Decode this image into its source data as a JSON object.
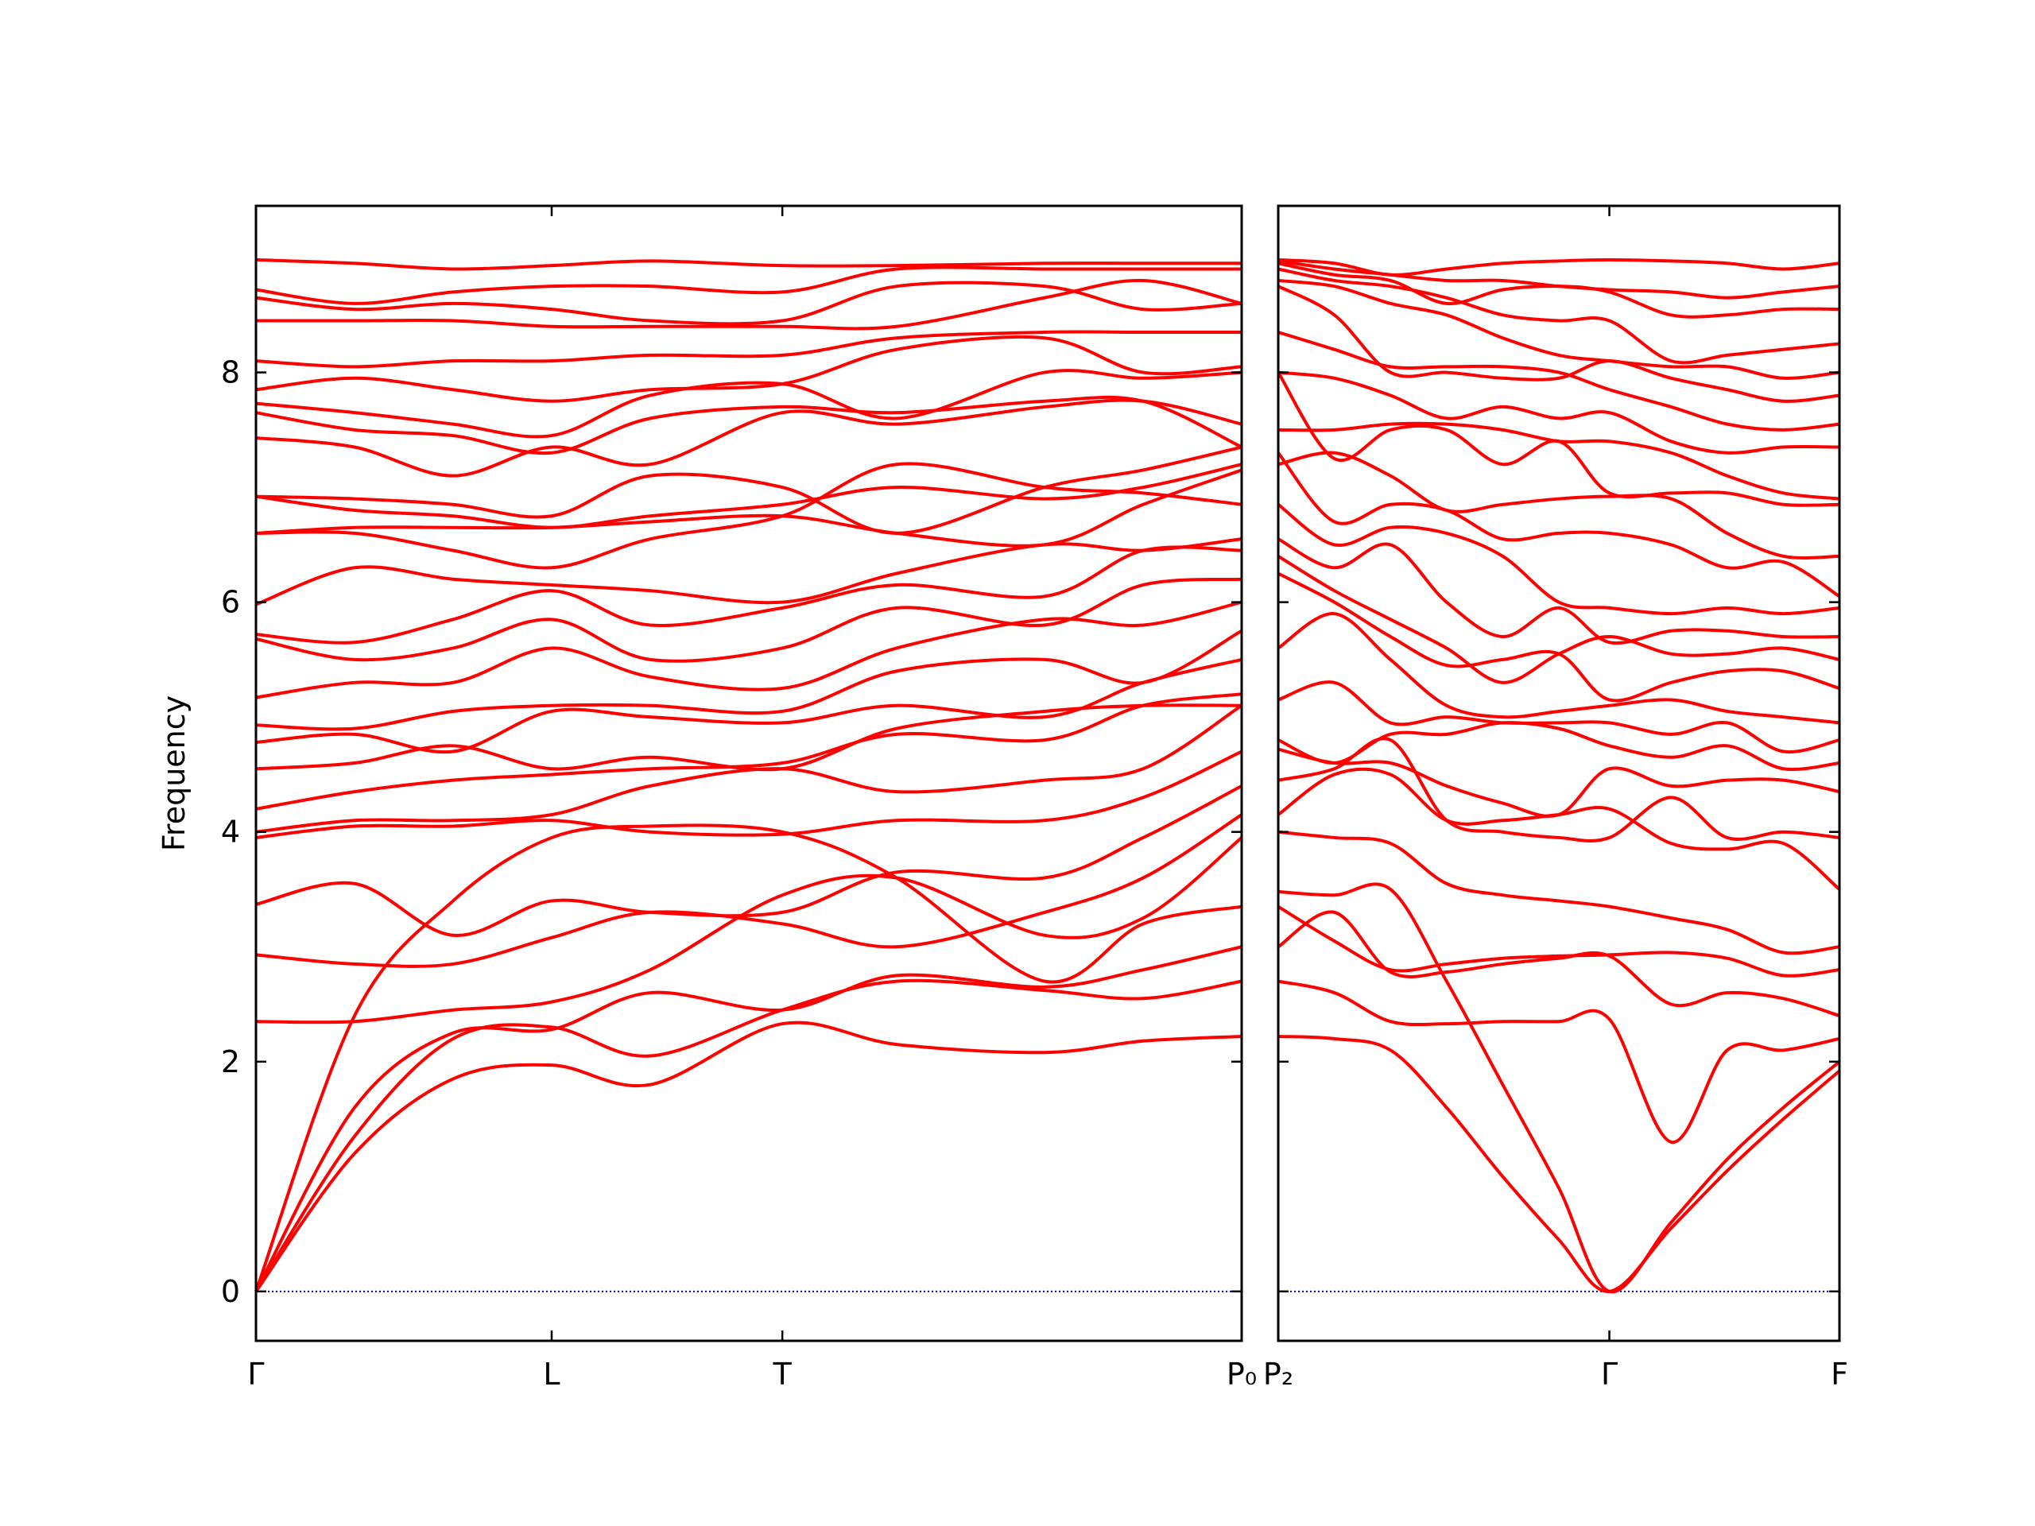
{
  "chart_data": [
    {
      "type": "line",
      "ylabel": "Frequency",
      "color": "#ff0000",
      "zero_line": "#0000cc",
      "xlim": [
        0,
        1
      ],
      "ylim": [
        -0.43,
        9.45
      ],
      "yticks": [
        0,
        2,
        4,
        6,
        8
      ],
      "ytick_labels": true,
      "xticks": [
        {
          "value": 0,
          "label": "Γ"
        },
        {
          "value": 0.3,
          "label": "L"
        },
        {
          "value": 0.534,
          "label": "T"
        },
        {
          "value": 1,
          "label": "P₀"
        }
      ],
      "x": [
        0,
        0.1,
        0.2,
        0.3,
        0.4,
        0.534,
        0.65,
        0.8,
        0.9,
        1
      ],
      "bands": [
        [
          0,
          1.2,
          1.85,
          1.97,
          1.8,
          2.33,
          2.15,
          2.08,
          2.18,
          2.22
        ],
        [
          0,
          1.35,
          2.2,
          2.3,
          2.05,
          2.45,
          2.7,
          2.62,
          2.55,
          2.7
        ],
        [
          0,
          1.6,
          2.25,
          2.28,
          2.6,
          2.45,
          2.75,
          2.65,
          2.8,
          3.0
        ],
        [
          0,
          2.4,
          3.4,
          3.95,
          4.05,
          4.0,
          3.6,
          2.7,
          3.2,
          3.35
        ],
        [
          2.35,
          2.35,
          2.45,
          2.52,
          2.8,
          3.45,
          3.6,
          3.1,
          3.25,
          3.95
        ],
        [
          2.93,
          2.85,
          2.85,
          3.08,
          3.3,
          3.2,
          3.0,
          3.3,
          3.6,
          4.15
        ],
        [
          3.37,
          3.55,
          3.1,
          3.4,
          3.3,
          3.3,
          3.65,
          3.6,
          3.95,
          4.4
        ],
        [
          3.95,
          4.05,
          4.05,
          4.1,
          4.0,
          3.98,
          4.1,
          4.1,
          4.3,
          4.7
        ],
        [
          4.0,
          4.1,
          4.1,
          4.15,
          4.4,
          4.55,
          4.35,
          4.45,
          4.55,
          5.1
        ],
        [
          4.2,
          4.35,
          4.45,
          4.5,
          4.55,
          4.6,
          4.85,
          4.8,
          5.1,
          5.2
        ],
        [
          4.55,
          4.6,
          4.75,
          4.55,
          4.65,
          4.55,
          4.9,
          5.05,
          5.1,
          5.1
        ],
        [
          4.78,
          4.85,
          4.7,
          5.05,
          5.0,
          4.95,
          5.1,
          5.0,
          5.3,
          5.5
        ],
        [
          4.93,
          4.9,
          5.05,
          5.1,
          5.1,
          5.05,
          5.4,
          5.5,
          5.3,
          5.75
        ],
        [
          5.17,
          5.3,
          5.3,
          5.6,
          5.35,
          5.25,
          5.6,
          5.85,
          5.8,
          6.0
        ],
        [
          5.68,
          5.5,
          5.6,
          5.85,
          5.5,
          5.6,
          5.95,
          5.8,
          6.15,
          6.2
        ],
        [
          5.72,
          5.65,
          5.85,
          6.1,
          5.8,
          5.95,
          6.15,
          6.05,
          6.45,
          6.45
        ],
        [
          5.98,
          6.3,
          6.2,
          6.15,
          6.1,
          6.0,
          6.25,
          6.5,
          6.45,
          6.55
        ],
        [
          6.6,
          6.6,
          6.45,
          6.3,
          6.55,
          6.75,
          7.2,
          7.0,
          6.95,
          6.85
        ],
        [
          6.6,
          6.65,
          6.65,
          6.65,
          6.7,
          6.75,
          6.6,
          6.5,
          6.85,
          7.15
        ],
        [
          6.92,
          6.8,
          6.75,
          6.65,
          6.75,
          6.85,
          7.0,
          6.9,
          7.0,
          7.2
        ],
        [
          6.92,
          6.9,
          6.85,
          6.75,
          7.1,
          7.0,
          6.6,
          7.0,
          7.15,
          7.35
        ],
        [
          7.43,
          7.35,
          7.1,
          7.35,
          7.2,
          7.65,
          7.55,
          7.7,
          7.75,
          7.55
        ],
        [
          7.65,
          7.5,
          7.45,
          7.3,
          7.6,
          7.7,
          7.65,
          7.75,
          7.75,
          7.35
        ],
        [
          7.73,
          7.65,
          7.55,
          7.45,
          7.8,
          7.9,
          7.6,
          8.0,
          7.95,
          8.0
        ],
        [
          7.85,
          7.95,
          7.85,
          7.75,
          7.85,
          7.9,
          8.2,
          8.3,
          8.0,
          8.05
        ],
        [
          8.1,
          8.05,
          8.1,
          8.1,
          8.15,
          8.15,
          8.3,
          8.35,
          8.35,
          8.35
        ],
        [
          8.45,
          8.45,
          8.45,
          8.4,
          8.4,
          8.4,
          8.4,
          8.65,
          8.8,
          8.6
        ],
        [
          8.65,
          8.55,
          8.6,
          8.55,
          8.45,
          8.45,
          8.75,
          8.75,
          8.55,
          8.6
        ],
        [
          8.72,
          8.6,
          8.7,
          8.75,
          8.75,
          8.7,
          8.9,
          8.9,
          8.9,
          8.9
        ],
        [
          8.98,
          8.95,
          8.9,
          8.93,
          8.97,
          8.93,
          8.93,
          8.95,
          8.95,
          8.95
        ]
      ]
    },
    {
      "type": "line",
      "color": "#ff0000",
      "zero_line": "#0000cc",
      "xlim": [
        0,
        1
      ],
      "ylim": [
        -0.43,
        9.45
      ],
      "yticks": [
        0,
        2,
        4,
        6,
        8
      ],
      "ytick_labels": false,
      "xticks": [
        {
          "value": 0,
          "label": "P₂"
        },
        {
          "value": 0.59,
          "label": "Γ"
        },
        {
          "value": 1,
          "label": "F"
        }
      ],
      "x": [
        0,
        0.1,
        0.2,
        0.3,
        0.4,
        0.5,
        0.59,
        0.7,
        0.8,
        0.9,
        1
      ],
      "bands": [
        [
          2.22,
          2.2,
          2.1,
          1.6,
          1.0,
          0.45,
          0,
          0.55,
          1.05,
          1.5,
          1.92
        ],
        [
          3.48,
          3.45,
          3.5,
          2.7,
          1.8,
          0.9,
          0,
          0.6,
          1.15,
          1.6,
          2.0
        ],
        [
          2.7,
          2.6,
          2.35,
          2.33,
          2.35,
          2.35,
          2.37,
          1.3,
          2.1,
          2.1,
          2.2
        ],
        [
          3.0,
          3.3,
          2.78,
          2.78,
          2.85,
          2.9,
          2.92,
          2.5,
          2.6,
          2.55,
          2.4
        ],
        [
          3.35,
          3.05,
          2.8,
          2.85,
          2.9,
          2.92,
          2.93,
          2.95,
          2.9,
          2.75,
          2.8
        ],
        [
          4.0,
          3.95,
          3.9,
          3.55,
          3.45,
          3.4,
          3.35,
          3.25,
          3.15,
          2.95,
          3.0
        ],
        [
          4.15,
          4.5,
          4.5,
          4.1,
          4.1,
          4.15,
          4.2,
          3.9,
          3.85,
          3.9,
          3.5
        ],
        [
          4.45,
          4.55,
          4.8,
          4.1,
          4.0,
          3.95,
          3.95,
          4.3,
          3.95,
          4.0,
          3.95
        ],
        [
          4.72,
          4.6,
          4.6,
          4.4,
          4.25,
          4.15,
          4.55,
          4.4,
          4.45,
          4.45,
          4.35
        ],
        [
          4.8,
          4.6,
          4.85,
          4.85,
          4.95,
          4.9,
          4.75,
          4.65,
          4.75,
          4.55,
          4.6
        ],
        [
          5.15,
          5.3,
          4.95,
          5.0,
          4.95,
          4.95,
          4.95,
          4.85,
          4.95,
          4.7,
          4.8
        ],
        [
          5.6,
          5.9,
          5.5,
          5.1,
          5.0,
          5.05,
          5.1,
          5.15,
          5.05,
          5.0,
          4.95
        ],
        [
          6.25,
          6.0,
          5.7,
          5.45,
          5.5,
          5.55,
          5.15,
          5.3,
          5.4,
          5.4,
          5.25
        ],
        [
          6.4,
          6.1,
          5.85,
          5.6,
          5.3,
          5.55,
          5.7,
          5.55,
          5.55,
          5.6,
          5.5
        ],
        [
          6.55,
          6.3,
          6.5,
          6.0,
          5.7,
          5.95,
          5.65,
          5.75,
          5.75,
          5.7,
          5.7
        ],
        [
          6.85,
          6.5,
          6.65,
          6.6,
          6.4,
          6.0,
          5.95,
          5.9,
          5.95,
          5.9,
          5.95
        ],
        [
          7.3,
          6.7,
          6.85,
          6.8,
          6.55,
          6.6,
          6.6,
          6.5,
          6.3,
          6.35,
          6.05
        ],
        [
          7.2,
          7.3,
          7.1,
          6.8,
          6.85,
          6.9,
          6.92,
          6.9,
          6.6,
          6.4,
          6.4
        ],
        [
          8.0,
          7.25,
          7.5,
          7.5,
          7.2,
          7.4,
          6.95,
          6.95,
          6.95,
          6.85,
          6.85
        ],
        [
          7.5,
          7.5,
          7.55,
          7.55,
          7.5,
          7.4,
          7.4,
          7.3,
          7.1,
          6.95,
          6.9
        ],
        [
          8.0,
          7.95,
          7.8,
          7.6,
          7.7,
          7.6,
          7.65,
          7.4,
          7.3,
          7.35,
          7.35
        ],
        [
          8.35,
          8.2,
          8.05,
          8.05,
          8.05,
          8.0,
          7.85,
          7.7,
          7.55,
          7.5,
          7.55
        ],
        [
          8.75,
          8.5,
          8.0,
          8.0,
          7.95,
          7.95,
          8.1,
          7.95,
          7.85,
          7.75,
          7.8
        ],
        [
          8.8,
          8.75,
          8.6,
          8.5,
          8.3,
          8.15,
          8.1,
          8.05,
          8.05,
          7.95,
          8.0
        ],
        [
          8.9,
          8.8,
          8.75,
          8.65,
          8.5,
          8.45,
          8.45,
          8.1,
          8.15,
          8.2,
          8.25
        ],
        [
          8.95,
          8.85,
          8.8,
          8.6,
          8.72,
          8.75,
          8.7,
          8.5,
          8.5,
          8.55,
          8.55
        ],
        [
          8.97,
          8.9,
          8.85,
          8.8,
          8.8,
          8.75,
          8.72,
          8.7,
          8.65,
          8.7,
          8.75
        ],
        [
          8.98,
          8.95,
          8.85,
          8.9,
          8.95,
          8.97,
          8.98,
          8.97,
          8.95,
          8.9,
          8.95
        ]
      ]
    }
  ]
}
